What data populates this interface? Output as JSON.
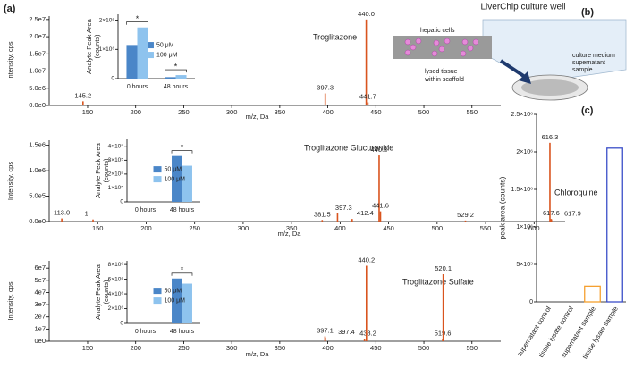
{
  "panel_labels": [
    "(a)",
    "(b)",
    "(c)"
  ],
  "diagram": {
    "title": "LiverChip culture well",
    "hepatic_label": "hepatic cells",
    "tissue_label_lines": [
      "lysed tissue",
      "within scaffold"
    ],
    "medium_label_lines": [
      "culture medium",
      "supernatant",
      "sample"
    ]
  },
  "chart_data": [
    {
      "type": "spectrum",
      "ylabel": "Intensity, cps",
      "xlabel": "m/z, Da",
      "annotation": "Troglitazone",
      "color": "#d9541e",
      "xlim": [
        110,
        580
      ],
      "xticks": [
        150,
        200,
        250,
        300,
        350,
        400,
        450,
        500,
        550
      ],
      "ylim": [
        0,
        26000000
      ],
      "yticks": [
        {
          "value": 0,
          "label": "0.0e0"
        },
        {
          "value": 5000000,
          "label": "5.0e6"
        },
        {
          "value": 10000000,
          "label": "1.0e7"
        },
        {
          "value": 15000000,
          "label": "1.5e7"
        },
        {
          "value": 20000000,
          "label": "2.0e7"
        },
        {
          "value": 25000000,
          "label": "2.5e7"
        }
      ],
      "x": [
        145.2,
        397.3,
        440.0,
        441.7
      ],
      "x_labels": [
        "145.2",
        "397.3",
        "440.0",
        "441.7"
      ],
      "values": [
        1200000,
        3500000,
        25000000,
        900000
      ]
    },
    {
      "type": "spectrum",
      "ylabel": "Intensity, cps",
      "xlabel": "m/z, Da",
      "annotation": "Troglitazone Glucuronide",
      "color": "#d9541e",
      "xlim": [
        100,
        632
      ],
      "xticks": [
        150,
        200,
        250,
        300,
        350,
        400,
        450,
        500,
        550,
        600
      ],
      "ylim": [
        0,
        1600000
      ],
      "yticks": [
        {
          "value": 0,
          "label": "0.0e0"
        },
        {
          "value": 500000,
          "label": "5.0e5"
        },
        {
          "value": 1000000,
          "label": "1.0e6"
        },
        {
          "value": 1500000,
          "label": "1.5e6"
        }
      ],
      "x": [
        113.0,
        145.2,
        381.5,
        397.3,
        412.4,
        440.2,
        441.6,
        529.2,
        616.3,
        617.6,
        617.9
      ],
      "x_labels": [
        "113.0",
        "145.2",
        "381.5",
        "397.3",
        "412.4",
        "440.2",
        "441.6",
        "529.2",
        "616.3",
        "617.6",
        "617.9"
      ],
      "values": [
        60000,
        40000,
        30000,
        160000,
        50000,
        1300000,
        200000,
        20000,
        1550000,
        50000,
        40000
      ]
    },
    {
      "type": "spectrum",
      "ylabel": "Intensity, cps",
      "xlabel": "m/z, Da",
      "annotation": "Troglitazone Sulfate",
      "color": "#d9541e",
      "xlim": [
        110,
        580
      ],
      "xticks": [
        150,
        200,
        250,
        300,
        350,
        400,
        450,
        500,
        550
      ],
      "ylim": [
        0,
        66000000
      ],
      "yticks": [
        {
          "value": 0,
          "label": "0e0"
        },
        {
          "value": 10000000,
          "label": "1e7"
        },
        {
          "value": 20000000,
          "label": "2e7"
        },
        {
          "value": 30000000,
          "label": "3e7"
        },
        {
          "value": 40000000,
          "label": "4e7"
        },
        {
          "value": 50000000,
          "label": "5e7"
        },
        {
          "value": 60000000,
          "label": "6e7"
        }
      ],
      "x": [
        397.1,
        397.4,
        438.2,
        440.2,
        519.6,
        520.1
      ],
      "x_labels": [
        "397.1",
        "397.4",
        "438.2",
        "440.2",
        "519.6",
        "520.1"
      ],
      "values": [
        4000000,
        3000000,
        2000000,
        62000000,
        2000000,
        55000000
      ]
    },
    {
      "type": "bar",
      "ylabel_lines": [
        "Analyte Peak Area",
        "(counts)"
      ],
      "categories": [
        "0 hours",
        "48 hours"
      ],
      "series": [
        {
          "name": "50 μM",
          "color": "#4a86c8",
          "values": [
            1150000,
            50000
          ]
        },
        {
          "name": "100 μM",
          "color": "#8ec3ee",
          "values": [
            1750000,
            120000
          ]
        }
      ],
      "ylim": [
        0,
        2200000
      ],
      "yticks": [
        0,
        {
          "value": 1000000,
          "label": "1×10⁶"
        },
        {
          "value": 2000000,
          "label": "2×10⁶"
        }
      ],
      "significance": [
        "*",
        "*"
      ]
    },
    {
      "type": "bar",
      "ylabel_lines": [
        "Analyte Peak Area",
        "(counts)"
      ],
      "categories": [
        "0 hours",
        "48 hours"
      ],
      "series": [
        {
          "name": "50 μM",
          "color": "#4a86c8",
          "values": [
            0,
            330000
          ]
        },
        {
          "name": "100 μM",
          "color": "#8ec3ee",
          "values": [
            0,
            260000
          ]
        }
      ],
      "ylim": [
        0,
        450000
      ],
      "yticks": [
        0,
        {
          "value": 100000,
          "label": "1×10⁵"
        },
        {
          "value": 200000,
          "label": "2×10⁵"
        },
        {
          "value": 300000,
          "label": "3×10⁵"
        },
        {
          "value": 400000,
          "label": "4×10⁵"
        }
      ],
      "significance": [
        "*"
      ]
    },
    {
      "type": "bar",
      "ylabel_lines": [
        "Analyte Peak Area",
        "(counts)"
      ],
      "categories": [
        "0 hours",
        "48 hours"
      ],
      "series": [
        {
          "name": "50 μM",
          "color": "#4a86c8",
          "values": [
            0,
            6100000
          ]
        },
        {
          "name": "100 μM",
          "color": "#8ec3ee",
          "values": [
            0,
            5400000
          ]
        }
      ],
      "ylim": [
        0,
        8500000
      ],
      "yticks": [
        0,
        {
          "value": 2000000,
          "label": "2×10⁶"
        },
        {
          "value": 4000000,
          "label": "4×10⁶"
        },
        {
          "value": 6000000,
          "label": "6×10⁶"
        },
        {
          "value": 8000000,
          "label": "8×10⁶"
        }
      ],
      "significance": [
        "*"
      ]
    },
    {
      "type": "outline_bar",
      "ylabel": "peak area (counts)",
      "annotation": "Chloroquine",
      "categories": [
        "supernatant control",
        "tissue lysate control",
        "supernatant sample",
        "tissue lysate sample"
      ],
      "values": [
        0,
        0,
        210000,
        2050000
      ],
      "colors": [
        "#4cc3d9",
        "#4cc3d9",
        "#f5a030",
        "#3b4fc8"
      ],
      "ylim": [
        0,
        2500000
      ],
      "yticks": [
        0,
        {
          "value": 500000,
          "label": "5×10⁵"
        },
        {
          "value": 1000000,
          "label": "1×10⁶"
        },
        {
          "value": 1500000,
          "label": "1.5×10⁶"
        },
        {
          "value": 2000000,
          "label": "2×10⁶"
        },
        {
          "value": 2500000,
          "label": "2.5×10⁶"
        }
      ]
    }
  ]
}
